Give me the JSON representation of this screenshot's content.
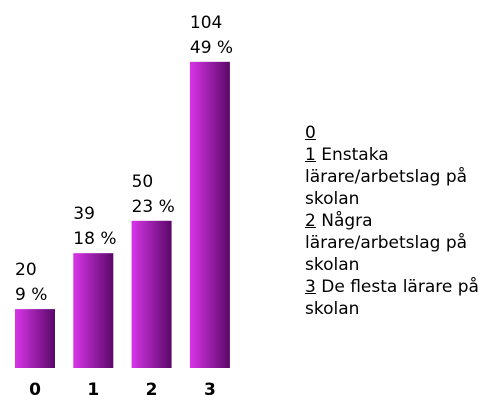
{
  "chart_data": {
    "type": "bar",
    "categories": [
      "0",
      "1",
      "2",
      "3"
    ],
    "values": [
      20,
      39,
      50,
      104
    ],
    "percent_labels": [
      "9 %",
      "18 %",
      "23 %",
      "49 %"
    ],
    "color": "#d835e8",
    "ylim": [
      0,
      125
    ],
    "legend": [
      {
        "key": "0",
        "label": ""
      },
      {
        "key": "1",
        "label": "Enstaka lärare/arbetslag på skolan"
      },
      {
        "key": "2",
        "label": "Några lärare/arbetslag på skolan"
      },
      {
        "key": "3",
        "label": "De flesta lärare på skolan"
      }
    ]
  }
}
